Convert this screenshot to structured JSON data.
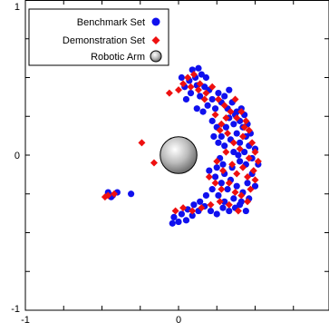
{
  "chart_data": {
    "type": "scatter",
    "title": "",
    "xlabel": "",
    "ylabel": "",
    "xlim": [
      -1,
      1
    ],
    "ylim": [
      -1,
      1
    ],
    "x_ticks": [
      -1,
      0
    ],
    "x_tick_labels": [
      "-1",
      "0"
    ],
    "y_ticks": [
      -1,
      0,
      1
    ],
    "y_tick_labels": [
      "-1",
      "0",
      "1"
    ],
    "grid": false,
    "legend_position": "top-left",
    "legend": [
      {
        "name": "Benchmark Set",
        "marker": "circle",
        "color": "#1010ee"
      },
      {
        "name": "Demonstration Set",
        "marker": "diamond",
        "color": "#ee1010"
      },
      {
        "name": "Robotic Arm",
        "marker": "sphere",
        "color": "#b0b0b0"
      }
    ],
    "robotic_arm": {
      "x": 0,
      "y": 0,
      "radius": 0.12
    },
    "series": [
      {
        "name": "Benchmark Set",
        "marker": "circle",
        "color": "#1010ee",
        "points": [
          [
            0.07,
            0.48
          ],
          [
            0.09,
            0.55
          ],
          [
            0.12,
            0.45
          ],
          [
            0.15,
            0.52
          ],
          [
            0.08,
            0.4
          ],
          [
            0.05,
            0.36
          ],
          [
            0.14,
            0.38
          ],
          [
            0.18,
            0.5
          ],
          [
            0.2,
            0.42
          ],
          [
            0.22,
            0.36
          ],
          [
            0.26,
            0.4
          ],
          [
            0.24,
            0.3
          ],
          [
            0.28,
            0.34
          ],
          [
            0.3,
            0.38
          ],
          [
            0.32,
            0.3
          ],
          [
            0.35,
            0.34
          ],
          [
            0.38,
            0.28
          ],
          [
            0.33,
            0.24
          ],
          [
            0.36,
            0.2
          ],
          [
            0.4,
            0.22
          ],
          [
            0.42,
            0.18
          ],
          [
            0.38,
            0.14
          ],
          [
            0.44,
            0.12
          ],
          [
            0.4,
            0.08
          ],
          [
            0.46,
            0.06
          ],
          [
            0.43,
            0.02
          ],
          [
            0.48,
            -0.02
          ],
          [
            0.44,
            -0.06
          ],
          [
            0.4,
            -0.04
          ],
          [
            0.36,
            0.02
          ],
          [
            0.3,
            0.06
          ],
          [
            0.28,
            0.12
          ],
          [
            0.25,
            0.18
          ],
          [
            0.22,
            0.22
          ],
          [
            0.27,
            -0.02
          ],
          [
            0.25,
            -0.08
          ],
          [
            0.3,
            -0.12
          ],
          [
            0.28,
            -0.18
          ],
          [
            0.32,
            -0.22
          ],
          [
            0.34,
            -0.16
          ],
          [
            0.38,
            -0.2
          ],
          [
            0.42,
            -0.24
          ],
          [
            0.45,
            -0.18
          ],
          [
            0.48,
            -0.12
          ],
          [
            0.46,
            -0.28
          ],
          [
            0.4,
            -0.32
          ],
          [
            0.36,
            -0.28
          ],
          [
            0.3,
            -0.3
          ],
          [
            0.26,
            -0.26
          ],
          [
            0.22,
            -0.22
          ],
          [
            0.18,
            -0.26
          ],
          [
            0.14,
            -0.3
          ],
          [
            0.1,
            -0.32
          ],
          [
            0.06,
            -0.35
          ],
          [
            0.02,
            -0.38
          ],
          [
            -0.03,
            -0.4
          ],
          [
            -0.04,
            -0.44
          ],
          [
            0.0,
            -0.43
          ],
          [
            0.05,
            -0.42
          ],
          [
            0.09,
            -0.39
          ],
          [
            0.13,
            -0.36
          ],
          [
            0.17,
            -0.33
          ],
          [
            0.21,
            -0.36
          ],
          [
            0.25,
            -0.38
          ],
          [
            0.29,
            -0.34
          ],
          [
            0.33,
            -0.36
          ],
          [
            0.37,
            -0.34
          ],
          [
            0.41,
            -0.3
          ],
          [
            0.24,
            -0.14
          ],
          [
            0.2,
            -0.1
          ],
          [
            0.26,
            0.08
          ],
          [
            0.23,
            0.12
          ],
          [
            0.31,
            0.18
          ],
          [
            0.34,
            0.1
          ],
          [
            0.5,
            0.04
          ],
          [
            0.52,
            -0.06
          ],
          [
            0.5,
            -0.2
          ],
          [
            0.44,
            -0.36
          ],
          [
            0.12,
            0.3
          ],
          [
            0.16,
            0.28
          ],
          [
            0.19,
            0.32
          ],
          [
            0.11,
            0.5
          ],
          [
            0.04,
            0.44
          ],
          [
            0.02,
            0.5
          ],
          [
            0.13,
            0.56
          ],
          [
            0.17,
            0.44
          ],
          [
            -0.46,
            -0.24
          ],
          [
            -0.43,
            -0.26
          ],
          [
            -0.4,
            -0.24
          ],
          [
            -0.31,
            -0.25
          ],
          [
            -0.44,
            -0.27
          ],
          [
            0.29,
            -0.06
          ],
          [
            0.35,
            -0.08
          ],
          [
            0.39,
            0.0
          ],
          [
            0.37,
            0.26
          ],
          [
            0.41,
            0.3
          ],
          [
            0.45,
            0.2
          ],
          [
            0.47,
            0.14
          ],
          [
            0.43,
            0.26
          ],
          [
            0.33,
            0.42
          ]
        ]
      },
      {
        "name": "Demonstration Set",
        "marker": "diamond",
        "color": "#ee1010",
        "points": [
          [
            0.06,
            0.5
          ],
          [
            0.1,
            0.52
          ],
          [
            0.14,
            0.46
          ],
          [
            0.18,
            0.4
          ],
          [
            0.22,
            0.44
          ],
          [
            0.26,
            0.36
          ],
          [
            0.3,
            0.32
          ],
          [
            0.34,
            0.28
          ],
          [
            0.38,
            0.24
          ],
          [
            0.41,
            0.28
          ],
          [
            0.44,
            0.22
          ],
          [
            0.46,
            0.16
          ],
          [
            0.42,
            0.12
          ],
          [
            0.48,
            0.08
          ],
          [
            0.5,
            0.02
          ],
          [
            0.46,
            -0.02
          ],
          [
            0.52,
            -0.04
          ],
          [
            0.49,
            -0.1
          ],
          [
            0.45,
            -0.14
          ],
          [
            0.42,
            -0.08
          ],
          [
            0.38,
            -0.12
          ],
          [
            0.35,
            -0.06
          ],
          [
            0.4,
            0.04
          ],
          [
            0.36,
            0.08
          ],
          [
            0.32,
            0.14
          ],
          [
            0.28,
            0.2
          ],
          [
            0.24,
            0.26
          ],
          [
            0.29,
            -0.1
          ],
          [
            0.33,
            -0.18
          ],
          [
            0.37,
            -0.24
          ],
          [
            0.41,
            -0.26
          ],
          [
            0.45,
            -0.3
          ],
          [
            0.39,
            -0.36
          ],
          [
            0.33,
            -0.32
          ],
          [
            0.27,
            -0.3
          ],
          [
            0.21,
            -0.32
          ],
          [
            0.15,
            -0.34
          ],
          [
            0.09,
            -0.36
          ],
          [
            0.03,
            -0.34
          ],
          [
            -0.02,
            -0.36
          ],
          [
            0.28,
            -0.22
          ],
          [
            0.24,
            -0.18
          ],
          [
            0.2,
            -0.14
          ],
          [
            0.17,
            0.36
          ],
          [
            0.13,
            0.42
          ],
          [
            0.08,
            0.44
          ],
          [
            0.03,
            0.46
          ],
          [
            0.0,
            0.42
          ],
          [
            -0.06,
            0.4
          ],
          [
            -0.24,
            0.08
          ],
          [
            -0.46,
            -0.26
          ],
          [
            -0.42,
            -0.25
          ],
          [
            -0.48,
            -0.27
          ],
          [
            -0.16,
            -0.05
          ],
          [
            0.47,
            -0.22
          ],
          [
            0.5,
            -0.16
          ],
          [
            0.43,
            0.18
          ],
          [
            0.37,
            0.36
          ],
          [
            0.31,
            0.24
          ],
          [
            0.27,
            0.16
          ],
          [
            0.25,
            -0.04
          ],
          [
            0.31,
            0.02
          ]
        ]
      }
    ]
  }
}
